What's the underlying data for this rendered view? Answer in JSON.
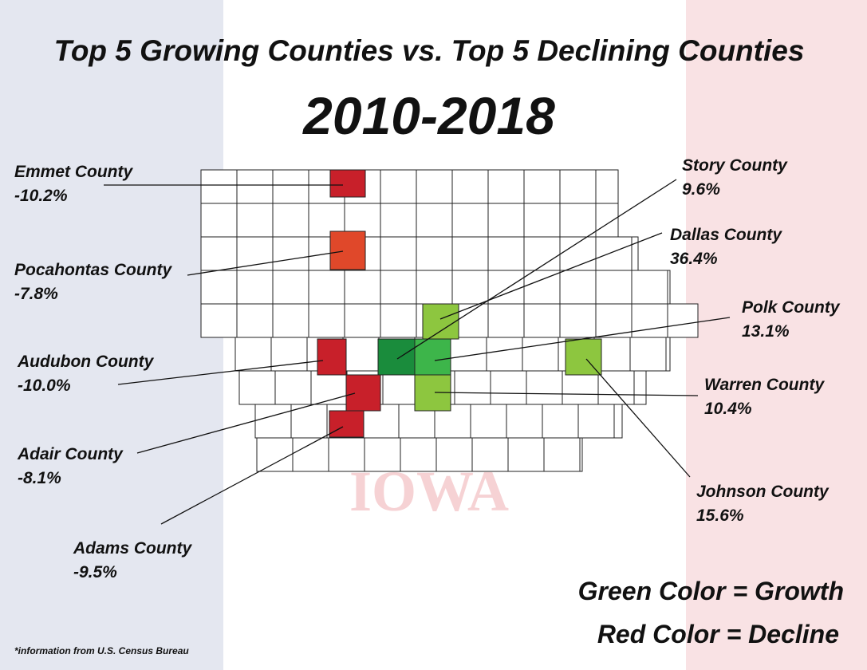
{
  "title": "Top 5 Growing Counties vs. Top 5 Declining Counties",
  "subtitle": "2010-2018",
  "watermark": "IOWA",
  "counties": [
    {
      "name": "Emmet County",
      "change": "-10.2%",
      "color": "#c8202a"
    },
    {
      "name": "Pocahontas County",
      "change": "-7.8%",
      "color": "#e0482a"
    },
    {
      "name": "Audubon County",
      "change": "-10.0%",
      "color": "#c8202a"
    },
    {
      "name": "Adair County",
      "change": "-8.1%",
      "color": "#c8202a"
    },
    {
      "name": "Adams County",
      "change": "-9.5%",
      "color": "#c8202a"
    },
    {
      "name": "Story County",
      "change": "9.6%",
      "color": "#8dc63f"
    },
    {
      "name": "Dallas County",
      "change": "36.4%",
      "color": "#1a8c3c"
    },
    {
      "name": "Polk County",
      "change": "13.1%",
      "color": "#3db54a"
    },
    {
      "name": "Warren County",
      "change": "10.4%",
      "color": "#8dc63f"
    },
    {
      "name": "Johnson County",
      "change": "15.6%",
      "color": "#8dc63f"
    }
  ],
  "legend": [
    "Green Color = Growth",
    "Red Color = Decline"
  ],
  "footnote": "*information from U.S. Census Bureau"
}
